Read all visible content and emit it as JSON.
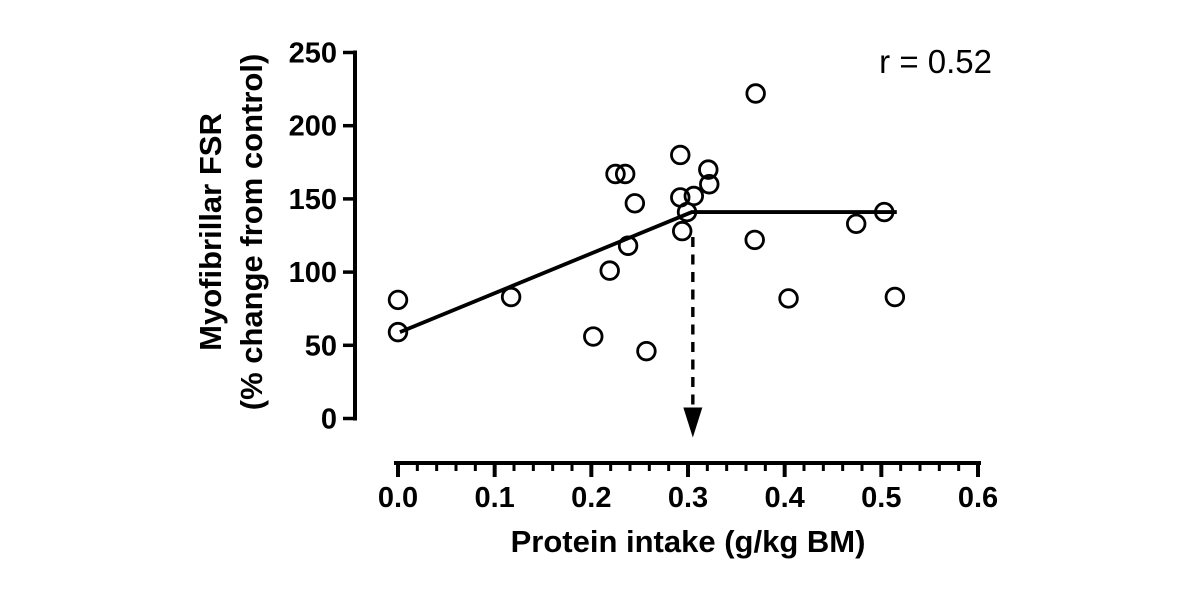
{
  "figure": {
    "background": "#ffffff",
    "ink": "#000000"
  },
  "chart_data": {
    "type": "scatter",
    "title": "",
    "xlabel": "Protein intake (g/kg BM)",
    "ylabel_line1": "Myofibrillar FSR",
    "ylabel_line2": "(% change from control)",
    "annotation": "r = 0.52",
    "xlim": [
      0.0,
      0.6
    ],
    "ylim": [
      0,
      250
    ],
    "grid": false,
    "legend": null,
    "marker": "open-circle",
    "x_ticks": [
      {
        "v": 0.0,
        "label": "0.0"
      },
      {
        "v": 0.1,
        "label": "0.1"
      },
      {
        "v": 0.2,
        "label": "0.2"
      },
      {
        "v": 0.3,
        "label": "0.3"
      },
      {
        "v": 0.4,
        "label": "0.4"
      },
      {
        "v": 0.5,
        "label": "0.5"
      },
      {
        "v": 0.6,
        "label": "0.6"
      }
    ],
    "x_minor_step": 0.02,
    "y_ticks": [
      {
        "v": 0,
        "label": "0"
      },
      {
        "v": 50,
        "label": "50"
      },
      {
        "v": 100,
        "label": "100"
      },
      {
        "v": 150,
        "label": "150"
      },
      {
        "v": 200,
        "label": "200"
      },
      {
        "v": 250,
        "label": "250"
      }
    ],
    "points": [
      [
        0.0,
        81
      ],
      [
        0.0,
        59
      ],
      [
        0.117,
        83
      ],
      [
        0.202,
        56
      ],
      [
        0.219,
        101
      ],
      [
        0.257,
        46
      ],
      [
        0.225,
        167
      ],
      [
        0.235,
        167
      ],
      [
        0.245,
        147
      ],
      [
        0.238,
        118
      ],
      [
        0.292,
        180
      ],
      [
        0.321,
        170
      ],
      [
        0.322,
        160
      ],
      [
        0.292,
        151
      ],
      [
        0.306,
        152
      ],
      [
        0.299,
        141
      ],
      [
        0.294,
        128
      ],
      [
        0.37,
        222
      ],
      [
        0.369,
        122
      ],
      [
        0.404,
        82
      ],
      [
        0.474,
        133
      ],
      [
        0.503,
        141
      ],
      [
        0.514,
        83
      ]
    ],
    "trend_line": [
      [
        0.002,
        59
      ],
      [
        0.304,
        141
      ],
      [
        0.516,
        141
      ]
    ],
    "breakpoint_arrow": {
      "x": 0.305,
      "y_from": 124,
      "y_to": -13
    }
  }
}
